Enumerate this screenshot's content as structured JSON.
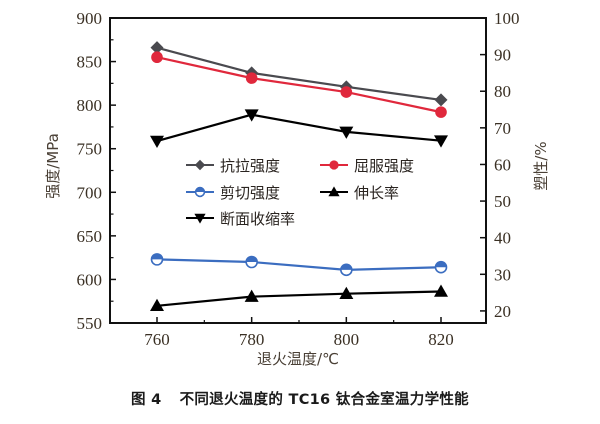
{
  "chart_data": {
    "type": "line",
    "title": "",
    "x": [
      760,
      780,
      800,
      820
    ],
    "xlabel": "退火温度/℃",
    "xticks": [
      "760",
      "780",
      "800",
      "820"
    ],
    "xlim": [
      748,
      830
    ],
    "y_left": {
      "label": "强度/MPa",
      "lim": [
        550,
        900
      ],
      "ticks": [
        "550",
        "600",
        "650",
        "700",
        "750",
        "800",
        "850",
        "900"
      ]
    },
    "y_right": {
      "label": "塑性/%",
      "lim": [
        20,
        100
      ],
      "display_min": 16.7,
      "ticks": [
        "20",
        "30",
        "40",
        "50",
        "60",
        "70",
        "80",
        "90",
        "100"
      ]
    },
    "series": [
      {
        "name": "抗拉强度",
        "axis": "left",
        "values": [
          866,
          837,
          821,
          806
        ],
        "color": "#4a4a4f",
        "marker": "diamond"
      },
      {
        "name": "屈服强度",
        "axis": "left",
        "values": [
          855,
          831,
          815,
          792
        ],
        "color": "#e0283c",
        "marker": "circle"
      },
      {
        "name": "剪切强度",
        "axis": "left",
        "values": [
          623,
          620,
          611,
          614
        ],
        "color": "#3b6dc0",
        "marker": "half-circle"
      },
      {
        "name": "伸长率",
        "axis": "right",
        "values": [
          21.4,
          23.9,
          24.7,
          25.3
        ],
        "color": "#000000",
        "marker": "triangle-up"
      },
      {
        "name": "断面收缩率",
        "axis": "right",
        "values": [
          66.4,
          73.6,
          68.9,
          66.5
        ],
        "color": "#000000",
        "marker": "triangle-down"
      }
    ],
    "legend": {
      "placement": "center",
      "order": [
        "抗拉强度",
        "屈服强度",
        "剪切强度",
        "伸长率",
        "断面收缩率"
      ]
    },
    "grid": false
  },
  "caption": {
    "figure_number": "图 4",
    "text": "不同退火温度的 TC16 钛合金室温力学性能"
  }
}
